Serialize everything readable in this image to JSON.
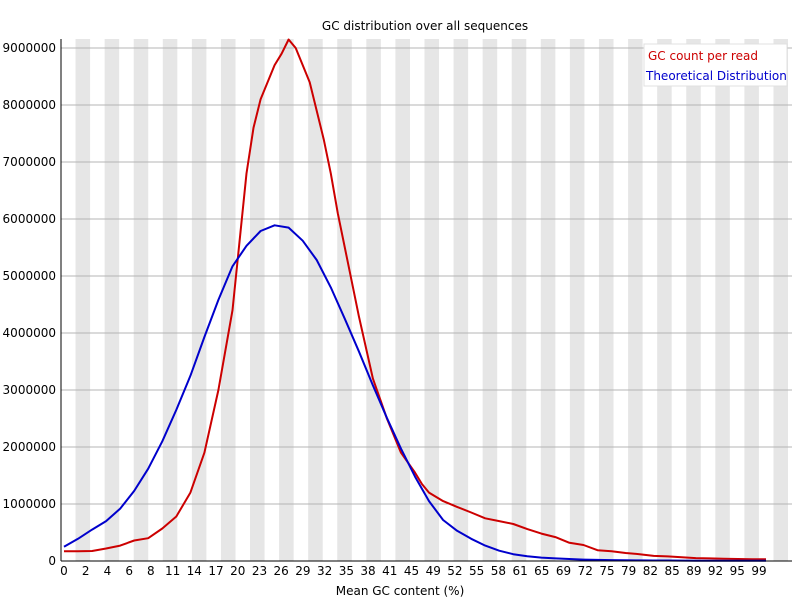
{
  "chart_data": {
    "type": "line",
    "title": "GC distribution over all sequences",
    "xlabel": "Mean GC content (%)",
    "ylabel": "",
    "xlim": [
      0,
      100
    ],
    "ylim": [
      0,
      9000000
    ],
    "y_ticks": [
      0,
      1000000,
      2000000,
      3000000,
      4000000,
      5000000,
      6000000,
      7000000,
      8000000,
      9000000
    ],
    "x_tick_labels": [
      "0",
      "2",
      "4",
      "6",
      "8",
      "11",
      "14",
      "17",
      "20",
      "23",
      "26",
      "29",
      "32",
      "35",
      "38",
      "41",
      "45",
      "49",
      "52",
      "55",
      "58",
      "61",
      "65",
      "69",
      "72",
      "75",
      "79",
      "82",
      "85",
      "89",
      "92",
      "95",
      "99"
    ],
    "grid": "horizontal",
    "background": "alternating vertical bands",
    "legend_position": "top-right",
    "series": [
      {
        "name": "GC count per read",
        "color": "#cc0000",
        "x": [
          0,
          2,
          4,
          6,
          8,
          10,
          12,
          14,
          16,
          18,
          20,
          22,
          24,
          26,
          27,
          28,
          30,
          31,
          32,
          33,
          35,
          37,
          38,
          39,
          40,
          41,
          42,
          44,
          46,
          48,
          50,
          51,
          52,
          54,
          56,
          58,
          60,
          62,
          64,
          66,
          68,
          70,
          72,
          74,
          76,
          78,
          80,
          82,
          84,
          86,
          88,
          90,
          92,
          94,
          96,
          98,
          100
        ],
        "y": [
          170000,
          170000,
          175000,
          220000,
          270000,
          360000,
          400000,
          570000,
          780000,
          1200000,
          1900000,
          3000000,
          4400000,
          6800000,
          7600000,
          8100000,
          8700000,
          8900000,
          9150000,
          9000000,
          8400000,
          7400000,
          6800000,
          6100000,
          5500000,
          4900000,
          4300000,
          3200000,
          2500000,
          1900000,
          1550000,
          1350000,
          1200000,
          1050000,
          950000,
          850000,
          750000,
          700000,
          650000,
          560000,
          480000,
          420000,
          320000,
          280000,
          190000,
          170000,
          140000,
          120000,
          90000,
          80000,
          65000,
          50000,
          45000,
          40000,
          35000,
          32000,
          30000
        ]
      },
      {
        "name": "Theoretical Distribution",
        "color": "#0000cc",
        "x": [
          0,
          2,
          4,
          6,
          8,
          10,
          12,
          14,
          16,
          18,
          20,
          22,
          24,
          26,
          28,
          30,
          32,
          34,
          36,
          38,
          40,
          42,
          44,
          46,
          48,
          50,
          52,
          54,
          56,
          58,
          60,
          62,
          64,
          66,
          68,
          70,
          72,
          74,
          76,
          78,
          80,
          82,
          84,
          86,
          88,
          90,
          92,
          94,
          96,
          98,
          100
        ],
        "y": [
          250000,
          390000,
          550000,
          700000,
          920000,
          1230000,
          1620000,
          2100000,
          2650000,
          3250000,
          3930000,
          4580000,
          5170000,
          5530000,
          5790000,
          5890000,
          5850000,
          5620000,
          5280000,
          4800000,
          4250000,
          3680000,
          3080000,
          2510000,
          1970000,
          1480000,
          1050000,
          720000,
          530000,
          390000,
          270000,
          180000,
          120000,
          85000,
          60000,
          45000,
          35000,
          25000,
          20000,
          16000,
          13000,
          11000,
          9000,
          8000,
          7000,
          6000,
          5500,
          5000,
          4500,
          4000,
          3500
        ]
      }
    ]
  }
}
